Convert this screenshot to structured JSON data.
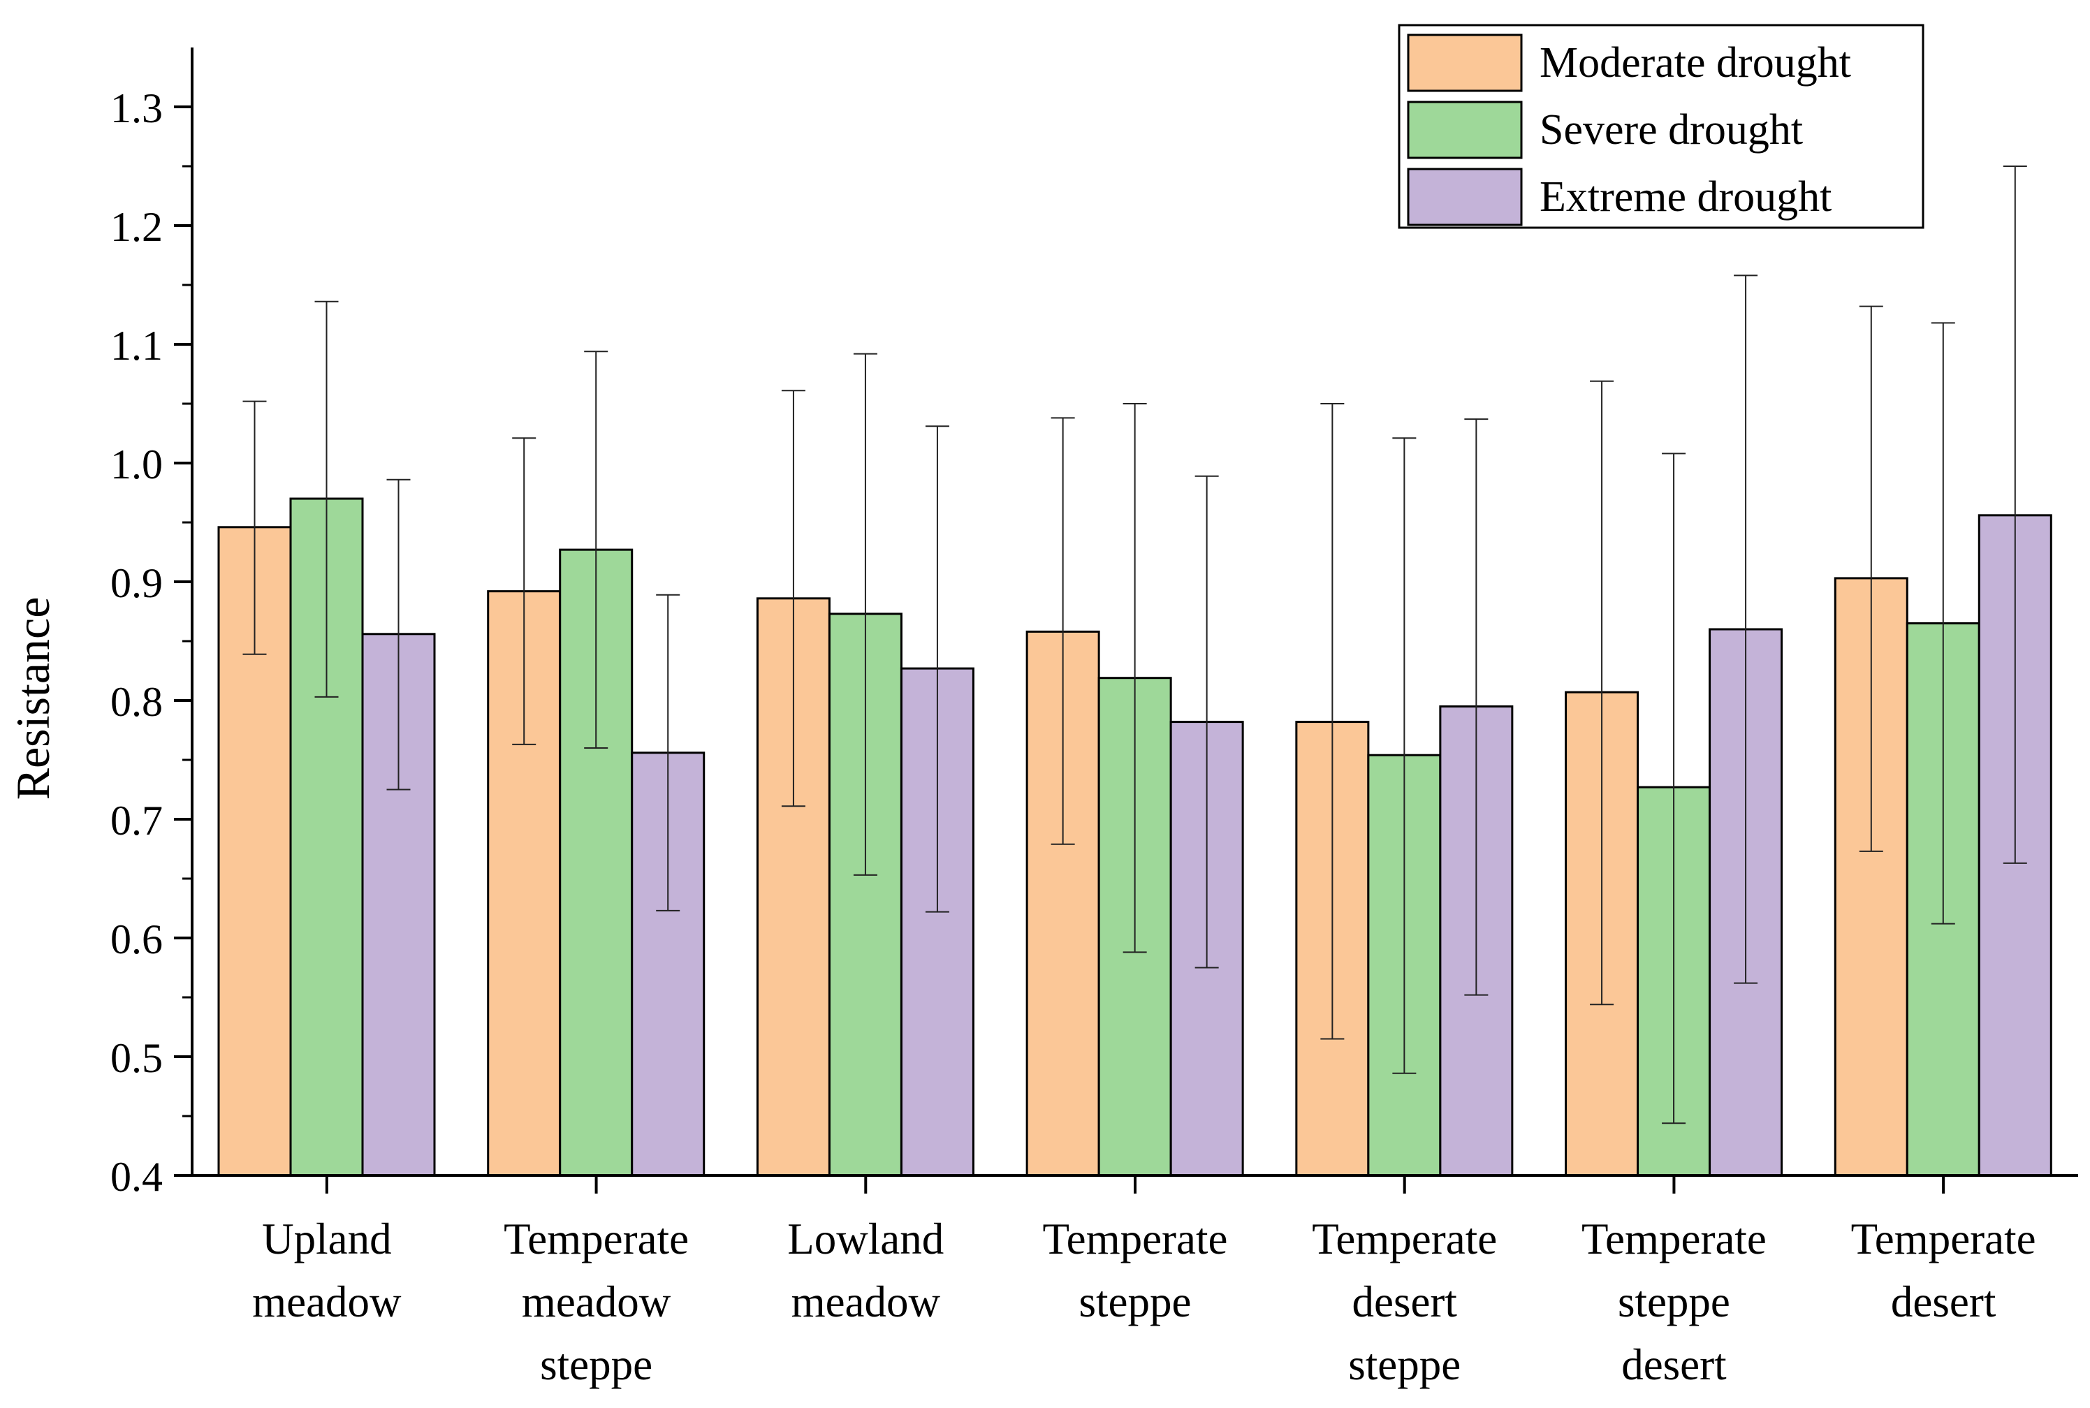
{
  "chart_data": {
    "type": "bar",
    "title": "",
    "xlabel": "",
    "ylabel": "Resistance",
    "ylim": [
      0.4,
      1.35
    ],
    "yticks": [
      "0.4",
      "0.5",
      "0.6",
      "0.7",
      "0.8",
      "0.9",
      "1.0",
      "1.1",
      "1.2",
      "1.3"
    ],
    "categories": [
      [
        "Upland",
        "meadow"
      ],
      [
        "Temperate",
        "meadow",
        "steppe"
      ],
      [
        "Lowland",
        "meadow"
      ],
      [
        "Temperate",
        "steppe"
      ],
      [
        "Temperate",
        "desert",
        "steppe"
      ],
      [
        "Temperate",
        "steppe",
        "desert"
      ],
      [
        "Temperate",
        "desert"
      ]
    ],
    "series": [
      {
        "name": "Moderate drought",
        "color": "#FBC797",
        "values": [
          0.946,
          0.892,
          0.886,
          0.858,
          0.782,
          0.807,
          0.903
        ],
        "err_low": [
          0.839,
          0.763,
          0.711,
          0.679,
          0.515,
          0.544,
          0.673
        ],
        "err_high": [
          1.052,
          1.021,
          1.061,
          1.038,
          1.05,
          1.069,
          1.132
        ]
      },
      {
        "name": "Severe drought",
        "color": "#9ED899",
        "values": [
          0.97,
          0.927,
          0.873,
          0.819,
          0.754,
          0.727,
          0.865
        ],
        "err_low": [
          0.803,
          0.76,
          0.653,
          0.588,
          0.486,
          0.444,
          0.612
        ],
        "err_high": [
          1.136,
          1.094,
          1.092,
          1.05,
          1.021,
          1.008,
          1.118
        ]
      },
      {
        "name": "Extreme drought",
        "color": "#C4B3D8",
        "values": [
          0.856,
          0.756,
          0.827,
          0.782,
          0.795,
          0.86,
          0.956
        ],
        "err_low": [
          0.725,
          0.623,
          0.622,
          0.575,
          0.552,
          0.562,
          0.663
        ],
        "err_high": [
          0.986,
          0.889,
          1.031,
          0.989,
          1.037,
          1.158,
          1.25
        ]
      }
    ],
    "legend_position": "top-right",
    "grid": false
  }
}
